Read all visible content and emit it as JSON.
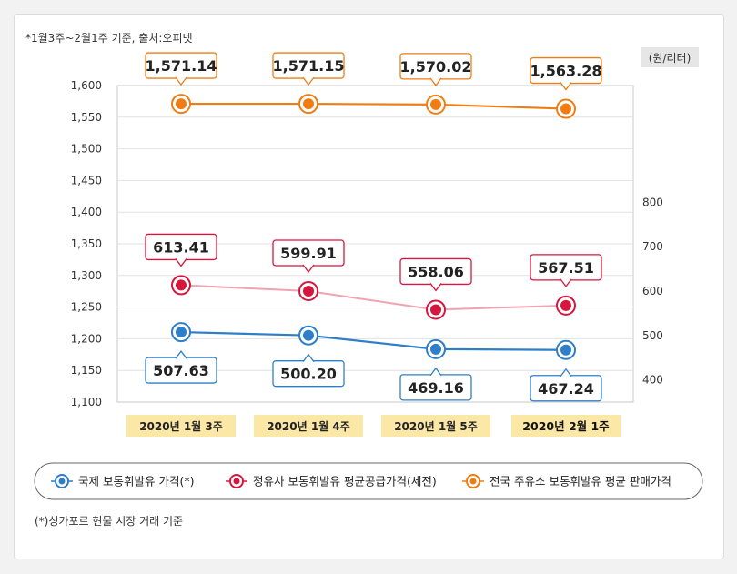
{
  "note_top": "*1월3주~2월1주 기준, 출처:오피넷",
  "unit": "(원/리터)",
  "footnote": "(*)싱가포르 현물 시장 거래 기준",
  "colors": {
    "blue": "#2e7fc9",
    "red": "#d6163c",
    "orange": "#f07d14",
    "red_line": "#f0a3b1"
  },
  "chart_data": {
    "type": "line",
    "categories": [
      "2020년 1월 3주",
      "2020년 1월 4주",
      "2020년 1월 5주",
      "2020년 2월 1주"
    ],
    "y_left": {
      "ylim": [
        1100,
        1600
      ],
      "ticks": [
        "1,100",
        "1,150",
        "1,200",
        "1,250",
        "1,300",
        "1,350",
        "1,400",
        "1,450",
        "1,500",
        "1,550",
        "1,600"
      ]
    },
    "y_right": {
      "ylim": [
        350,
        1063
      ],
      "ticks": [
        "400",
        "500",
        "600",
        "700",
        "800"
      ]
    },
    "series": [
      {
        "name": "국제 보통휘발유 가격(*)",
        "axis": "right",
        "color": "#2e7fc9",
        "values": [
          507.63,
          500.2,
          469.16,
          467.24
        ],
        "labels": [
          "507.63",
          "500.20",
          "469.16",
          "467.24"
        ]
      },
      {
        "name": "정유사 보통휘발유 평균공급가격(세전)",
        "axis": "right",
        "color": "#d6163c",
        "values": [
          613.41,
          599.91,
          558.06,
          567.51
        ],
        "labels": [
          "613.41",
          "599.91",
          "558.06",
          "567.51"
        ]
      },
      {
        "name": "전국 주유소 보통휘발유 평균 판매가격",
        "axis": "left",
        "color": "#f07d14",
        "values": [
          1571.14,
          1571.15,
          1570.02,
          1563.28
        ],
        "labels": [
          "1,571.14",
          "1,571.15",
          "1,570.02",
          "1,563.28"
        ]
      }
    ]
  }
}
